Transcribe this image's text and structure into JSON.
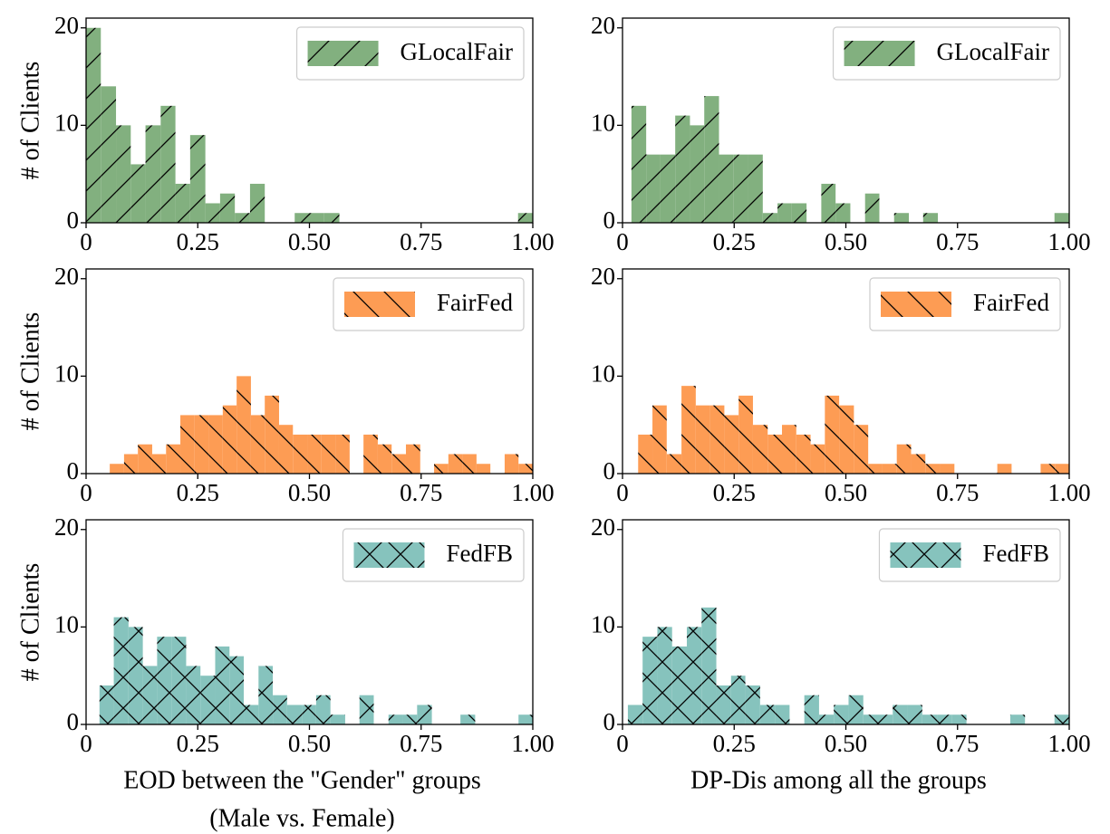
{
  "chart_data": [
    {
      "type": "histogram",
      "name": "GLocalFair",
      "color": "#82b07f",
      "hatch": "/",
      "legend": "upper right",
      "ylabel": "# of Clients",
      "bins": [
        0,
        0.033,
        0.067,
        0.1,
        0.133,
        0.167,
        0.2,
        0.233,
        0.267,
        0.3,
        0.333,
        0.367,
        0.4,
        0.433,
        0.467,
        0.5,
        0.533,
        0.567,
        0.6,
        0.633,
        0.667,
        0.7,
        0.733,
        0.767,
        0.8,
        0.833,
        0.867,
        0.9,
        0.933,
        0.967,
        1
      ],
      "values": [
        20,
        14,
        10,
        6,
        10,
        12,
        4,
        9,
        2,
        3,
        1,
        4,
        0,
        0,
        1,
        1,
        1,
        0,
        0,
        0,
        0,
        0,
        0,
        0,
        0,
        0,
        0,
        0,
        0,
        1
      ],
      "xlim": [
        0,
        1
      ],
      "ylim": [
        0,
        21
      ],
      "xticks": [
        0,
        0.25,
        {
          "value": 0.5,
          "label": "0.50"
        },
        0.75,
        {
          "value": 1,
          "label": "1.00"
        }
      ],
      "yticks": [
        0,
        10,
        20
      ]
    },
    {
      "type": "histogram",
      "name": "GLocalFair",
      "color": "#82b07f",
      "hatch": "/",
      "legend": "upper right",
      "bins": [
        0.02,
        0.053,
        0.085,
        0.118,
        0.151,
        0.183,
        0.216,
        0.249,
        0.281,
        0.314,
        0.347,
        0.379,
        0.412,
        0.445,
        0.477,
        0.51,
        0.543,
        0.575,
        0.608,
        0.641,
        0.673,
        0.706,
        0.739,
        0.771,
        0.804,
        0.837,
        0.869,
        0.902,
        0.935,
        0.967,
        1
      ],
      "values": [
        12,
        7,
        7,
        11,
        10,
        13,
        7,
        7,
        7,
        1,
        2,
        2,
        0,
        4,
        2,
        0,
        3,
        0,
        1,
        0,
        1,
        0,
        0,
        0,
        0,
        0,
        0,
        0,
        0,
        1
      ],
      "xlim": [
        0,
        1
      ],
      "ylim": [
        0,
        21
      ],
      "xticks": [
        0,
        0.25,
        {
          "value": 0.5,
          "label": "0.50"
        },
        0.75,
        {
          "value": 1,
          "label": "1.00"
        }
      ],
      "yticks": [
        0,
        10,
        20
      ]
    },
    {
      "type": "histogram",
      "name": "FairFed",
      "color": "#fd9c54",
      "hatch": "\\",
      "legend": "upper right",
      "ylabel": "# of Clients",
      "bins": [
        0.053,
        0.085,
        0.116,
        0.148,
        0.179,
        0.211,
        0.242,
        0.274,
        0.306,
        0.337,
        0.369,
        0.4,
        0.432,
        0.463,
        0.495,
        0.527,
        0.558,
        0.59,
        0.621,
        0.653,
        0.684,
        0.716,
        0.748,
        0.779,
        0.811,
        0.842,
        0.874,
        0.905,
        0.937,
        0.968,
        1
      ],
      "values": [
        1,
        2,
        3,
        2,
        3,
        6,
        6,
        6,
        7,
        10,
        6,
        8,
        5,
        4,
        4,
        4,
        4,
        0,
        4,
        3,
        2,
        3,
        0,
        1,
        2,
        2,
        1,
        0,
        2,
        1
      ],
      "xlim": [
        0,
        1
      ],
      "ylim": [
        0,
        21
      ],
      "xticks": [
        0,
        0.25,
        {
          "value": 0.5,
          "label": "0.50"
        },
        0.75,
        {
          "value": 1,
          "label": "1.00"
        }
      ],
      "yticks": [
        0,
        10,
        20
      ]
    },
    {
      "type": "histogram",
      "name": "FairFed",
      "color": "#fd9c54",
      "hatch": "\\",
      "legend": "upper right",
      "bins": [
        0.035,
        0.067,
        0.099,
        0.132,
        0.164,
        0.196,
        0.228,
        0.26,
        0.292,
        0.325,
        0.357,
        0.389,
        0.421,
        0.453,
        0.485,
        0.518,
        0.55,
        0.582,
        0.614,
        0.646,
        0.678,
        0.711,
        0.743,
        0.775,
        0.807,
        0.839,
        0.871,
        0.904,
        0.936,
        0.968,
        1
      ],
      "values": [
        4,
        7,
        2,
        9,
        7,
        7,
        6,
        8,
        5,
        4,
        5,
        4,
        3,
        8,
        7,
        5,
        1,
        1,
        3,
        2,
        1,
        1,
        0,
        0,
        0,
        1,
        0,
        0,
        1,
        1
      ],
      "xlim": [
        0,
        1
      ],
      "ylim": [
        0,
        21
      ],
      "xticks": [
        0,
        0.25,
        {
          "value": 0.5,
          "label": "0.50"
        },
        0.75,
        {
          "value": 1,
          "label": "1.00"
        }
      ],
      "yticks": [
        0,
        10,
        20
      ]
    },
    {
      "type": "histogram",
      "name": "FedFB",
      "color": "#86c3bd",
      "hatch": "x",
      "legend": "upper right",
      "ylabel": "# of Clients",
      "xlabel": [
        "EOD between the \"Gender\" groups",
        "(Male vs. Female)"
      ],
      "bins": [
        0.03,
        0.062,
        0.095,
        0.127,
        0.159,
        0.192,
        0.224,
        0.256,
        0.289,
        0.321,
        0.353,
        0.386,
        0.418,
        0.45,
        0.483,
        0.515,
        0.547,
        0.58,
        0.612,
        0.644,
        0.677,
        0.709,
        0.741,
        0.774,
        0.806,
        0.838,
        0.871,
        0.903,
        0.935,
        0.968,
        1
      ],
      "values": [
        4,
        11,
        10,
        6,
        9,
        9,
        6,
        5,
        8,
        7,
        2,
        6,
        3,
        2,
        2,
        3,
        1,
        0,
        3,
        0,
        1,
        1,
        2,
        0,
        0,
        1,
        0,
        0,
        0,
        1
      ],
      "xlim": [
        0,
        1
      ],
      "ylim": [
        0,
        21
      ],
      "xticks": [
        0,
        0.25,
        {
          "value": 0.5,
          "label": "0.50"
        },
        0.75,
        {
          "value": 1,
          "label": "1.00"
        }
      ],
      "yticks": [
        0,
        10,
        20
      ]
    },
    {
      "type": "histogram",
      "name": "FedFB",
      "color": "#86c3bd",
      "hatch": "x",
      "legend": "upper right",
      "xlabel": [
        "DP-Dis among all the groups"
      ],
      "bins": [
        0.012,
        0.045,
        0.078,
        0.111,
        0.144,
        0.177,
        0.21,
        0.243,
        0.275,
        0.308,
        0.341,
        0.374,
        0.407,
        0.44,
        0.473,
        0.506,
        0.539,
        0.572,
        0.605,
        0.638,
        0.671,
        0.704,
        0.737,
        0.77,
        0.802,
        0.835,
        0.868,
        0.901,
        0.934,
        0.967,
        1
      ],
      "values": [
        2,
        9,
        10,
        8,
        10,
        12,
        4,
        5,
        4,
        2,
        2,
        0,
        3,
        1,
        2,
        3,
        1,
        1,
        2,
        2,
        1,
        1,
        1,
        0,
        0,
        0,
        1,
        0,
        0,
        1
      ],
      "xlim": [
        0,
        1
      ],
      "ylim": [
        0,
        21
      ],
      "xticks": [
        0,
        0.25,
        {
          "value": 0.5,
          "label": "0.50"
        },
        0.75,
        {
          "value": 1,
          "label": "1.00"
        }
      ],
      "yticks": [
        0,
        10,
        20
      ]
    }
  ]
}
